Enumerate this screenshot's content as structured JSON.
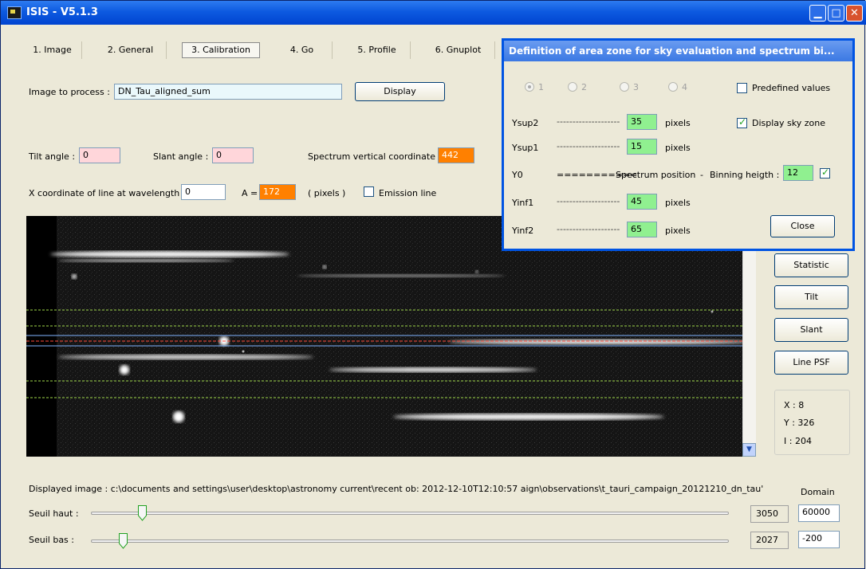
{
  "window": {
    "title": "ISIS - V5.1.3"
  },
  "tabs": [
    "1. Image",
    "2. General",
    "3. Calibration",
    "4. Go",
    "5. Profile",
    "6. Gnuplot"
  ],
  "active_tab": "3. Calibration",
  "image_to_process": {
    "label": "Image to process :",
    "value": "DN_Tau_aligned_sum",
    "display_button": "Display"
  },
  "angles": {
    "tilt_label": "Tilt angle :",
    "tilt_value": "0",
    "slant_label": "Slant angle :",
    "slant_value": "0",
    "spectrum_label": "Spectrum vertical coordinate :",
    "spectrum_value": "442"
  },
  "xcoord": {
    "label": "X coordinate of line at wavelength",
    "value": "0",
    "a_label": "A =",
    "a_value": "172",
    "units": "( pixels )",
    "emission_label": "Emission line",
    "emission_checked": false
  },
  "right_buttons": [
    "Statistic",
    "Tilt",
    "Slant",
    "Line PSF"
  ],
  "cursor": {
    "x": "X : 8",
    "y": "Y : 326",
    "i": "I  : 204"
  },
  "displayed_image": "Displayed image : c:\\documents and settings\\user\\desktop\\astronomy current\\recent ob: 2012-12-10T12:10:57 aign\\observations\\t_tauri_campaign_20121210_dn_tau'",
  "domain_label": "Domain",
  "thresholds": {
    "high_label": "Seuil haut :",
    "high_value": "3050",
    "high_domain": "60000",
    "high_level": 0.08,
    "low_label": "Seuil bas :",
    "low_value": "2027",
    "low_domain": "-200",
    "low_level": 0.05
  },
  "dialog": {
    "title": "Definition of area zone for sky evaluation and spectrum bi...",
    "radios": [
      "1",
      "2",
      "3",
      "4"
    ],
    "selected_radio": "1",
    "predefined_label": "Predefined values",
    "predefined_checked": false,
    "display_sky_label": "Display sky zone",
    "display_sky_checked": true,
    "rows": [
      {
        "name": "Ysup2",
        "dashes": "--------------------",
        "value": "35",
        "unit": "pixels"
      },
      {
        "name": "Ysup1",
        "dashes": "--------------------",
        "value": "15",
        "unit": "pixels"
      },
      {
        "name": "Yinf1",
        "dashes": "--------------------",
        "value": "45",
        "unit": "pixels"
      },
      {
        "name": "Yinf2",
        "dashes": "--------------------",
        "value": "65",
        "unit": "pixels"
      }
    ],
    "y0": {
      "name": "Y0",
      "dashes": "===========",
      "text": "Spectrum position",
      "sep": "-",
      "binning_label": "Binning heigth :",
      "binning_value": "12",
      "binning_checked": true
    },
    "close_button": "Close"
  },
  "colors": {
    "title_bar": "#0054e3",
    "orange": "#ff8000",
    "pink": "#ffd6da",
    "green": "#90f090",
    "sky_line": "#9fd84a",
    "center_line": "#ff4a3a",
    "bin_line": "#7fb3ff"
  }
}
